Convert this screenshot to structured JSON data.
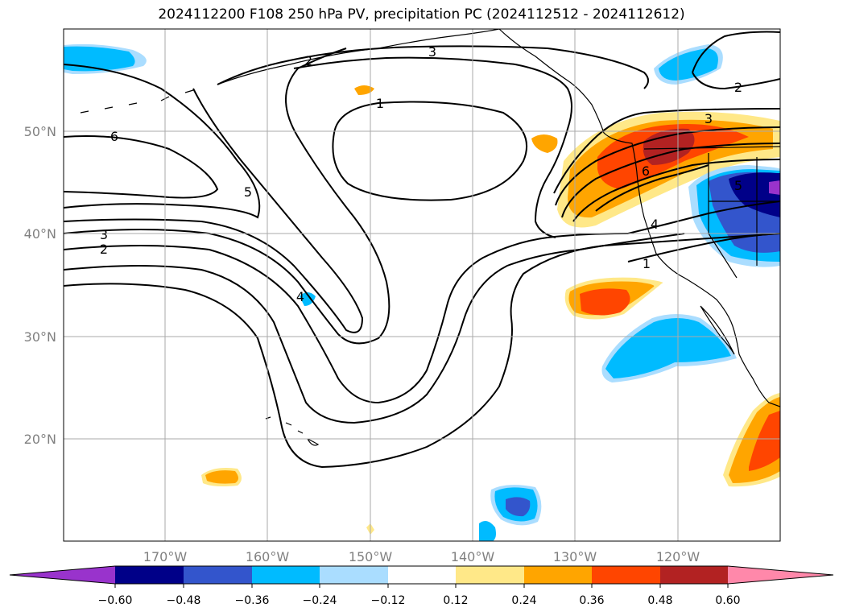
{
  "title": "2024112200 F108 250 hPa PV, precipitation PC (2024112512 - 2024112612)",
  "map": {
    "projection": "lat-lon",
    "lon_range": [
      -180,
      -110
    ],
    "lat_range": [
      10,
      60
    ],
    "gridlines": true,
    "lon_ticks": [
      "170°W",
      "160°W",
      "150°W",
      "140°W",
      "130°W",
      "120°W"
    ],
    "lat_ticks": [
      "50°N",
      "40°N",
      "30°N",
      "20°N"
    ],
    "pv_contour_labels": [
      "1",
      "2",
      "3",
      "4",
      "5",
      "6",
      "3",
      "2",
      "2",
      "3",
      "1",
      "4",
      "6",
      "5",
      "3",
      "2",
      "1",
      "4"
    ],
    "precip_pc_features": [
      {
        "region": "Pacific Northwest / N California",
        "sign": "positive",
        "max_level": 0.48
      },
      {
        "region": "Great Basin / Nevada",
        "sign": "negative",
        "max_level": -0.6
      },
      {
        "region": "Baja California offshore",
        "sign": "negative",
        "max_level": -0.36
      },
      {
        "region": "Off S California",
        "sign": "positive",
        "max_level": 0.36
      },
      {
        "region": "Mexico west coast",
        "sign": "positive",
        "max_level": 0.36
      },
      {
        "region": "Far NW Pacific (Aleutians)",
        "sign": "negative",
        "max_level": -0.36
      },
      {
        "region": "British Columbia coast",
        "sign": "negative",
        "max_level": -0.36
      }
    ]
  },
  "colorbar": {
    "ticks": [
      "−0.60",
      "−0.48",
      "−0.36",
      "−0.24",
      "−0.12",
      "0.12",
      "0.24",
      "0.36",
      "0.48",
      "0.60"
    ],
    "colors": [
      "#9933cc",
      "#000088",
      "#3355cc",
      "#00bbff",
      "#aaddff",
      "#ffffff",
      "#ffe888",
      "#ffa500",
      "#ff4500",
      "#b22222",
      "#ff88aa"
    ]
  }
}
